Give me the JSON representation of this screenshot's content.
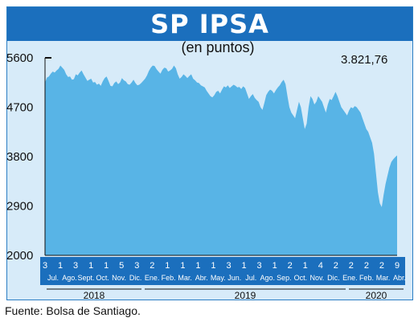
{
  "chart_data": {
    "type": "area",
    "title": "SP IPSA",
    "subtitle": "(en puntos)",
    "last_value_label": "3.821,76",
    "ylim": [
      2000,
      5600
    ],
    "yticks": [
      "5600",
      "4700",
      "3800",
      "2900",
      "2000"
    ],
    "grid": false,
    "series_color": "#58b4e6",
    "x_day_labels": [
      "3",
      "1",
      "3",
      "1",
      "1",
      "5",
      "3",
      "2",
      "1",
      "1",
      "1",
      "1",
      "3",
      "1",
      "3",
      "1",
      "2",
      "1",
      "4",
      "2",
      "2",
      "2",
      "2",
      "9"
    ],
    "x_month_labels": [
      "Jul.",
      "Ago.",
      "Sept.",
      "Oct.",
      "Nov.",
      "Dic.",
      "Ene.",
      "Feb.",
      "Mar.",
      "Abr.",
      "May.",
      "Jun.",
      "Jul.",
      "Ago.",
      "Sep.",
      "Oct.",
      "Nov.",
      "Dic.",
      "Ene.",
      "Feb.",
      "Mar.",
      "Abr."
    ],
    "x_year_labels": [
      "2018",
      "2019",
      "2020"
    ],
    "values": [
      5150,
      5240,
      5260,
      5310,
      5350,
      5330,
      5370,
      5400,
      5460,
      5420,
      5380,
      5300,
      5250,
      5260,
      5200,
      5210,
      5300,
      5280,
      5330,
      5370,
      5300,
      5240,
      5180,
      5200,
      5220,
      5150,
      5160,
      5110,
      5130,
      5090,
      5170,
      5230,
      5260,
      5180,
      5090,
      5080,
      5140,
      5170,
      5120,
      5150,
      5230,
      5190,
      5170,
      5120,
      5110,
      5150,
      5200,
      5140,
      5100,
      5110,
      5140,
      5180,
      5220,
      5280,
      5360,
      5420,
      5460,
      5450,
      5390,
      5350,
      5310,
      5380,
      5420,
      5410,
      5350,
      5370,
      5400,
      5460,
      5410,
      5300,
      5220,
      5250,
      5300,
      5270,
      5230,
      5270,
      5300,
      5220,
      5190,
      5150,
      5140,
      5100,
      5080,
      5060,
      5000,
      4950,
      4900,
      4880,
      4920,
      4980,
      5000,
      4950,
      5020,
      5080,
      5060,
      5100,
      5050,
      5080,
      5110,
      5090,
      5060,
      5070,
      5030,
      5080,
      5050,
      4950,
      4850,
      4900,
      4940,
      4870,
      4830,
      4800,
      4700,
      4650,
      4780,
      4920,
      4980,
      5020,
      5000,
      4950,
      5010,
      5060,
      5100,
      5160,
      5200,
      5120,
      4900,
      4700,
      4600,
      4550,
      4500,
      4650,
      4800,
      4700,
      4500,
      4300,
      4400,
      4700,
      4900,
      4850,
      4750,
      4800,
      4900,
      4850,
      4800,
      4700,
      4600,
      4750,
      4850,
      4830,
      4900,
      4980,
      4900,
      4800,
      4700,
      4650,
      4600,
      4550,
      4640,
      4700,
      4680,
      4720,
      4700,
      4650,
      4600,
      4500,
      4400,
      4300,
      4250,
      4150,
      4050,
      3850,
      3500,
      3150,
      2950,
      2880,
      3100,
      3300,
      3450,
      3600,
      3700,
      3750,
      3790,
      3821.76
    ]
  },
  "source": "Fuente: Bolsa de Santiago."
}
